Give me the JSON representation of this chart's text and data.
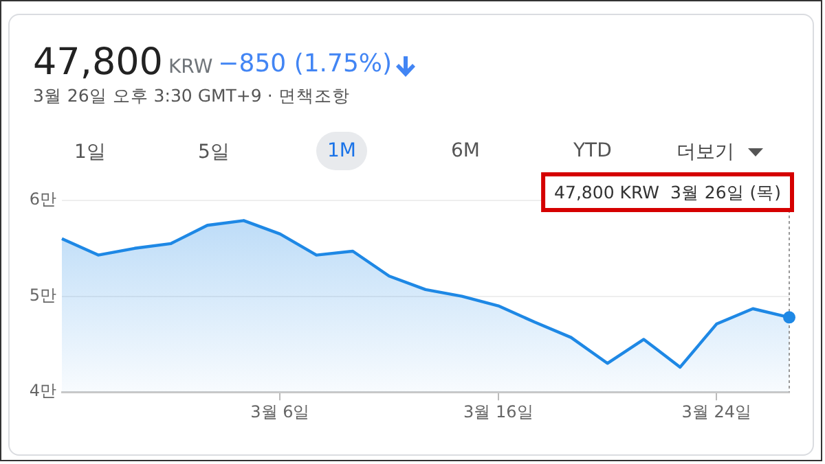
{
  "chart_data": {
    "type": "area",
    "title": "47,800",
    "annotations": [
      "KRW",
      "−850 (1.75%)",
      "3월 26일 오후 3:30 GMT+9 · 면책조항",
      "1일",
      "5일",
      "1M",
      "6M",
      "YTD",
      "더보기",
      "47,800 KRW  3월 26일 (목)"
    ],
    "categories": [
      null,
      null,
      null,
      null,
      null,
      null,
      "3월 6일",
      null,
      null,
      null,
      null,
      null,
      "3월 16일",
      null,
      null,
      null,
      null,
      null,
      "3월 24일",
      null,
      null
    ],
    "series": [
      {
        "color": "#1e88e5",
        "values": [
          5.6,
          5.43,
          5.5,
          5.55,
          5.74,
          5.79,
          5.65,
          5.43,
          5.47,
          5.21,
          5.07,
          5.0,
          4.9,
          4.73,
          4.57,
          4.3,
          4.55,
          4.26,
          4.71,
          4.87,
          4.78
        ]
      }
    ],
    "ylim": [
      4,
      6
    ],
    "yticks": [
      {
        "value": 4,
        "label": "4만"
      },
      {
        "value": 5,
        "label": "5만"
      },
      {
        "value": 6,
        "label": "6만"
      }
    ],
    "grid": "y",
    "legend": false,
    "marker": "none",
    "line_style": "solid"
  }
}
